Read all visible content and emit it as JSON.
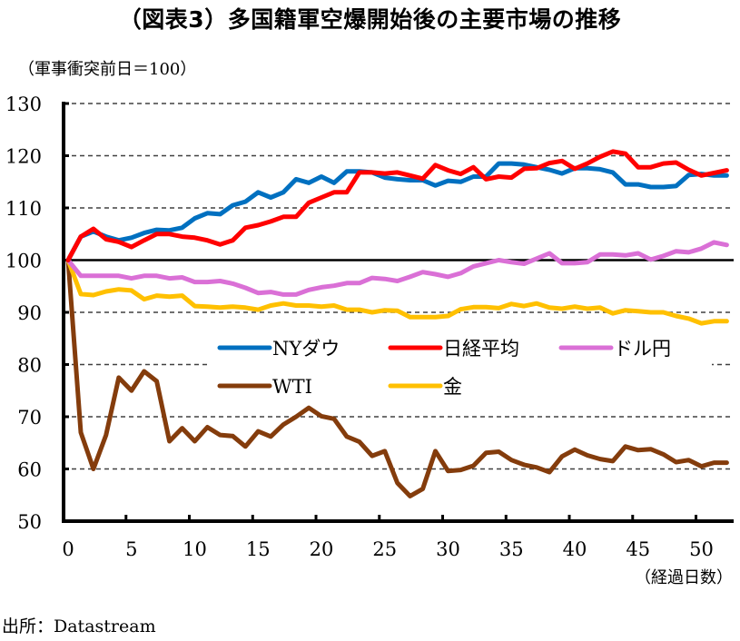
{
  "chart_data": {
    "type": "line",
    "title": "（図表3）多国籍軍空爆開始後の主要市場の推移",
    "ylabel": "（軍事衝突前日＝100）",
    "xlabel": "（経過日数）",
    "source": "出所：Datastream",
    "ylim": [
      50,
      130
    ],
    "yticks": [
      130,
      120,
      110,
      100,
      90,
      80,
      70,
      60,
      50
    ],
    "xlim": [
      0,
      52
    ],
    "xticks": [
      0,
      5,
      10,
      15,
      20,
      25,
      30,
      35,
      40,
      45,
      50
    ],
    "grid": "horizontal-dashed",
    "baseline": 100,
    "legend_placement": "center",
    "x": [
      0,
      1,
      2,
      3,
      4,
      5,
      6,
      7,
      8,
      9,
      10,
      11,
      12,
      13,
      14,
      15,
      16,
      17,
      18,
      19,
      20,
      21,
      22,
      23,
      24,
      25,
      26,
      27,
      28,
      29,
      30,
      31,
      32,
      33,
      34,
      35,
      36,
      37,
      38,
      39,
      40,
      41,
      42,
      43,
      44,
      45,
      46,
      47,
      48,
      49,
      50,
      51,
      52
    ],
    "series": [
      {
        "name": "NYダウ",
        "color": "#0070C0",
        "values": [
          100,
          104.5,
          105.5,
          104.5,
          103.8,
          104.3,
          105.2,
          105.8,
          105.7,
          106.2,
          108,
          109,
          108.8,
          110.5,
          111.2,
          113,
          112,
          113,
          115.5,
          114.8,
          116,
          114.8,
          117,
          117,
          116.8,
          115.8,
          115.5,
          115.3,
          115.3,
          114.3,
          115.2,
          115,
          116,
          116,
          118.5,
          118.5,
          118.3,
          117.8,
          117.3,
          116.6,
          117.6,
          117.6,
          117.4,
          116.8,
          114.5,
          114.5,
          114,
          114,
          114.2,
          116.3,
          116.5,
          116.2,
          116.2
        ]
      },
      {
        "name": "日経平均",
        "color": "#FF0000",
        "values": [
          100,
          104.5,
          106,
          104,
          103.5,
          102.5,
          103.8,
          105,
          105,
          104.5,
          104.3,
          103.8,
          103,
          103.8,
          106.2,
          106.7,
          107.4,
          108.3,
          108.3,
          111,
          112,
          113,
          113,
          116.8,
          116.8,
          116.6,
          116.8,
          116.2,
          115.6,
          118.2,
          117.2,
          116.5,
          117.8,
          115.5,
          116,
          115.8,
          117.5,
          117.6,
          118.6,
          119,
          117.5,
          118.5,
          119.8,
          120.8,
          120.4,
          117.8,
          117.8,
          118.5,
          118.7,
          117.3,
          116.2,
          116.7,
          117.2
        ]
      },
      {
        "name": "ドル円",
        "color": "#DA70D6",
        "values": [
          100,
          97,
          97,
          97,
          97,
          96.5,
          97,
          97,
          96.5,
          96.7,
          95.8,
          95.8,
          96,
          95.5,
          94.7,
          93.7,
          93.9,
          93.4,
          93.4,
          94.3,
          94.8,
          95.1,
          95.6,
          95.6,
          96.6,
          96.4,
          96,
          96.8,
          97.7,
          97.3,
          96.8,
          97.5,
          98.8,
          99.4,
          100,
          99.6,
          99.3,
          100.3,
          101.3,
          99.4,
          99.4,
          99.6,
          101.1,
          101.1,
          100.9,
          101.3,
          100.1,
          100.8,
          101.7,
          101.5,
          102.2,
          103.4,
          102.9
        ]
      },
      {
        "name": "WTI",
        "color": "#843C0C",
        "values": [
          100,
          67,
          60,
          66.5,
          77.5,
          75,
          78.7,
          76.8,
          65.3,
          67.8,
          65.3,
          68,
          66.5,
          66.3,
          64.3,
          67.2,
          66.2,
          68.5,
          70,
          71.7,
          70.1,
          69.6,
          66.2,
          65.2,
          62.5,
          63.4,
          57.3,
          54.8,
          56.2,
          63.4,
          59.6,
          59.8,
          60.6,
          63.1,
          63.3,
          61.7,
          60.8,
          60.3,
          59.4,
          62.4,
          63.7,
          62.6,
          61.9,
          61.5,
          64.3,
          63.6,
          63.8,
          62.8,
          61.3,
          61.7,
          60.5,
          61.2,
          61.2
        ]
      },
      {
        "name": "金",
        "color": "#FFC000",
        "values": [
          100,
          93.5,
          93.3,
          94,
          94.4,
          94.2,
          92.5,
          93.2,
          93,
          93.2,
          91.2,
          91.1,
          90.9,
          91.1,
          90.9,
          90.5,
          91.3,
          91.7,
          91.3,
          91.3,
          91.1,
          91.3,
          90.5,
          90.5,
          90,
          90.4,
          90.3,
          89.1,
          89.1,
          89.1,
          89.3,
          90.6,
          91,
          91,
          90.8,
          91.6,
          91.2,
          91.7,
          90.9,
          90.7,
          91.1,
          90.7,
          90.9,
          89.8,
          90.4,
          90.2,
          90,
          90,
          89.3,
          88.8,
          87.9,
          88.3,
          88.3
        ]
      }
    ],
    "legend_order": [
      [
        "NYダウ",
        "日経平均",
        "ドル円"
      ],
      [
        "WTI",
        "金"
      ]
    ]
  }
}
